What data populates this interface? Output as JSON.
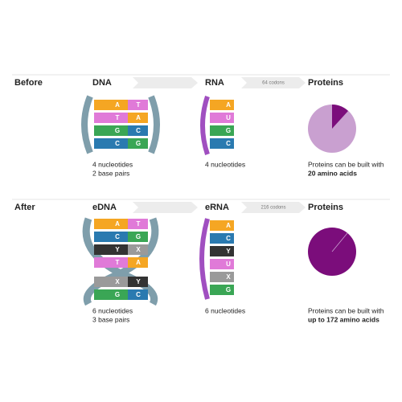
{
  "rows": [
    {
      "label": "Before",
      "dna": {
        "title": "DNA",
        "pairs": [
          [
            "A",
            "T"
          ],
          [
            "T",
            "A"
          ],
          [
            "G",
            "C"
          ],
          [
            "C",
            "G"
          ]
        ],
        "caption": [
          "4 nucleotides",
          "2 base pairs"
        ]
      },
      "codons": "64 codons",
      "rna": {
        "title": "RNA",
        "bases": [
          "A",
          "U",
          "G",
          "C"
        ],
        "caption": "4 nucleotides"
      },
      "proteins": {
        "title": "Proteins",
        "caption": "Proteins can be built with",
        "highlight": "20 amino acids"
      }
    },
    {
      "label": "After",
      "dna": {
        "title": "eDNA",
        "pairs": [
          [
            "A",
            "T"
          ],
          [
            "C",
            "G"
          ],
          [
            "Y",
            "X"
          ],
          [
            "T",
            "A"
          ],
          [
            "X",
            "Y"
          ],
          [
            "G",
            "C"
          ]
        ],
        "caption": [
          "6 nucleotides",
          "3 base pairs"
        ]
      },
      "codons": "216 codons",
      "rna": {
        "title": "eRNA",
        "bases": [
          "A",
          "C",
          "Y",
          "U",
          "X",
          "G"
        ],
        "caption": "6 nucleotides"
      },
      "proteins": {
        "title": "Proteins",
        "caption": "Proteins can be built with",
        "highlight": "up to 172 amino acids"
      }
    }
  ]
}
